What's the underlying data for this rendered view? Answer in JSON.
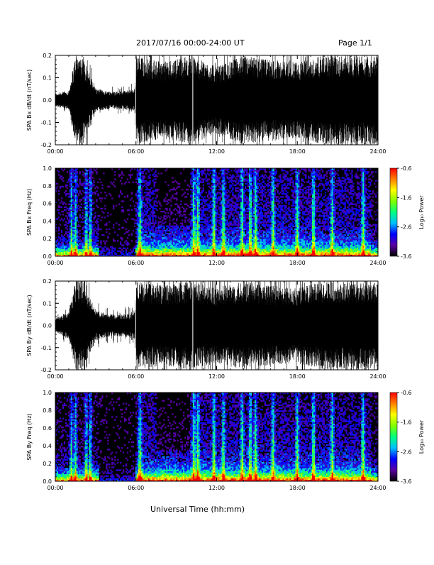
{
  "header": {
    "title": "2017/07/16  00:00-24:00 UT",
    "page": "Page 1/1"
  },
  "xaxis": {
    "label": "Universal Time (hh:mm)",
    "ticks": [
      "00:00",
      "06:00",
      "12:00",
      "18:00",
      "24:00"
    ],
    "range_hours": [
      0,
      24
    ]
  },
  "colorbar": {
    "label": "Log₁₀ Power",
    "ticks": [
      "-0.6",
      "-1.6",
      "-2.6",
      "-3.6"
    ],
    "range": [
      -3.6,
      -0.6
    ],
    "colors": [
      "#000000",
      "#5a00a0",
      "#0000ff",
      "#00bfff",
      "#00ff7f",
      "#80ff00",
      "#ffff00",
      "#ff8000",
      "#ff0000"
    ]
  },
  "chart_data": [
    {
      "type": "line",
      "ylabel": "SPA Bx dB/dt (nT/sec)",
      "ylim": [
        -0.2,
        0.2
      ],
      "yticks": [
        "0.2",
        "0.1",
        "0.0",
        "-0.1",
        "-0.2"
      ],
      "xlim": [
        0,
        24
      ],
      "series_color": "#000000",
      "envelope_x_hours": [
        0,
        1,
        1.5,
        2,
        3,
        4,
        5,
        5.9,
        6.0,
        8,
        10,
        12,
        14,
        16,
        18,
        20,
        22,
        24
      ],
      "envelope_amp": [
        0.03,
        0.04,
        0.2,
        0.2,
        0.05,
        0.04,
        0.04,
        0.05,
        0.2,
        0.17,
        0.2,
        0.15,
        0.2,
        0.18,
        0.17,
        0.2,
        0.2,
        0.2
      ]
    },
    {
      "type": "heatmap",
      "ylabel": "SPA Bx Freq (Hz)",
      "ylim": [
        0.0,
        1.0
      ],
      "yticks": [
        "1.0",
        "0.8",
        "0.6",
        "0.4",
        "0.2",
        "0.0"
      ],
      "xlim": [
        0,
        24
      ],
      "zlim": [
        -3.6,
        -0.6
      ],
      "gap_hours": [
        3.2,
        6.0
      ],
      "bursts_hours": [
        1.2,
        1.5,
        2.3,
        2.6,
        6.3,
        10.3,
        10.6,
        11.8,
        12.5,
        13.9,
        14.5,
        14.9,
        16.2,
        18.0,
        19.2,
        20.6,
        22.9
      ]
    },
    {
      "type": "line",
      "ylabel": "SPA By dB/dt (nT/sec)",
      "ylim": [
        -0.2,
        0.2
      ],
      "yticks": [
        "0.2",
        "0.1",
        "0.0",
        "-0.1",
        "-0.2"
      ],
      "xlim": [
        0,
        24
      ],
      "series_color": "#000000",
      "envelope_x_hours": [
        0,
        1,
        1.5,
        2,
        3,
        4,
        5,
        5.9,
        6.0,
        8,
        10,
        12,
        14,
        16,
        18,
        20,
        22,
        24
      ],
      "envelope_amp": [
        0.03,
        0.06,
        0.2,
        0.2,
        0.07,
        0.05,
        0.05,
        0.06,
        0.2,
        0.18,
        0.2,
        0.17,
        0.2,
        0.18,
        0.17,
        0.2,
        0.2,
        0.2
      ]
    },
    {
      "type": "heatmap",
      "ylabel": "SPA By Freq (Hz)",
      "ylim": [
        0.0,
        1.0
      ],
      "yticks": [
        "1.0",
        "0.8",
        "0.6",
        "0.4",
        "0.2",
        "0.0"
      ],
      "xlim": [
        0,
        24
      ],
      "zlim": [
        -3.6,
        -0.6
      ],
      "gap_hours": [
        3.2,
        6.0
      ],
      "bursts_hours": [
        1.2,
        1.5,
        2.3,
        2.6,
        6.3,
        10.3,
        10.6,
        11.8,
        12.5,
        13.9,
        14.5,
        14.9,
        16.2,
        18.0,
        19.2,
        20.6,
        22.9
      ]
    }
  ]
}
